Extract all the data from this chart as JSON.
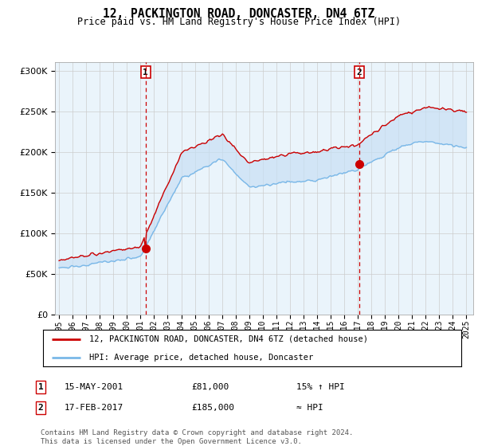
{
  "title": "12, PACKINGTON ROAD, DONCASTER, DN4 6TZ",
  "subtitle": "Price paid vs. HM Land Registry's House Price Index (HPI)",
  "ylim": [
    0,
    310000
  ],
  "yticks": [
    0,
    50000,
    100000,
    150000,
    200000,
    250000,
    300000
  ],
  "sale1_price": 81000,
  "sale1_label": "1",
  "sale1_year": 2001.37,
  "sale2_price": 185000,
  "sale2_label": "2",
  "sale2_year": 2017.12,
  "hpi_line_color": "#7ab8e8",
  "fill_color": "#c8e0f4",
  "price_line_color": "#cc0000",
  "sale_marker_color": "#cc0000",
  "vline_color": "#cc0000",
  "legend_label1": "12, PACKINGTON ROAD, DONCASTER, DN4 6TZ (detached house)",
  "legend_label2": "HPI: Average price, detached house, Doncaster",
  "table_row1": [
    "1",
    "15-MAY-2001",
    "£81,000",
    "15% ↑ HPI"
  ],
  "table_row2": [
    "2",
    "17-FEB-2017",
    "£185,000",
    "≈ HPI"
  ],
  "footnote": "Contains HM Land Registry data © Crown copyright and database right 2024.\nThis data is licensed under the Open Government Licence v3.0.",
  "background_color": "#ffffff",
  "plot_bg_color": "#eaf4fb"
}
